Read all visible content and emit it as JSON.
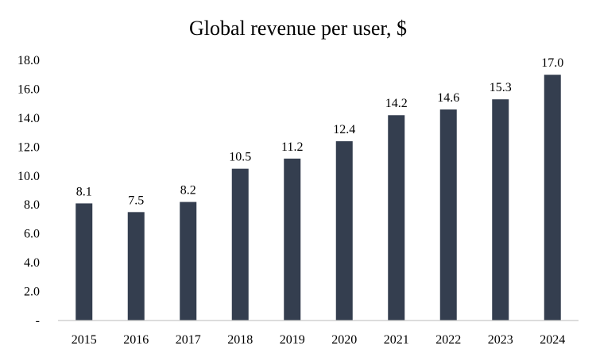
{
  "chart_data": {
    "type": "bar",
    "title": "Global revenue per user, $",
    "xlabel": "",
    "ylabel": "",
    "categories": [
      "2015",
      "2016",
      "2017",
      "2018",
      "2019",
      "2020",
      "2021",
      "2022",
      "2023",
      "2024"
    ],
    "values": [
      8.1,
      7.5,
      8.2,
      10.5,
      11.2,
      12.4,
      14.2,
      14.6,
      15.3,
      17.0
    ],
    "value_labels": [
      "8.1",
      "7.5",
      "8.2",
      "10.5",
      "11.2",
      "12.4",
      "14.2",
      "14.6",
      "15.3",
      "17.0"
    ],
    "ylim": [
      0,
      18
    ],
    "y_ticks": [
      0,
      2,
      4,
      6,
      8,
      10,
      12,
      14,
      16,
      18
    ],
    "y_tick_labels": [
      "-",
      "2.0",
      "4.0",
      "6.0",
      "8.0",
      "10.0",
      "12.0",
      "14.0",
      "16.0",
      "18.0"
    ],
    "grid": false,
    "legend": "none",
    "bar_color": "#343e4f",
    "axis_color": "#c8c8c8"
  }
}
